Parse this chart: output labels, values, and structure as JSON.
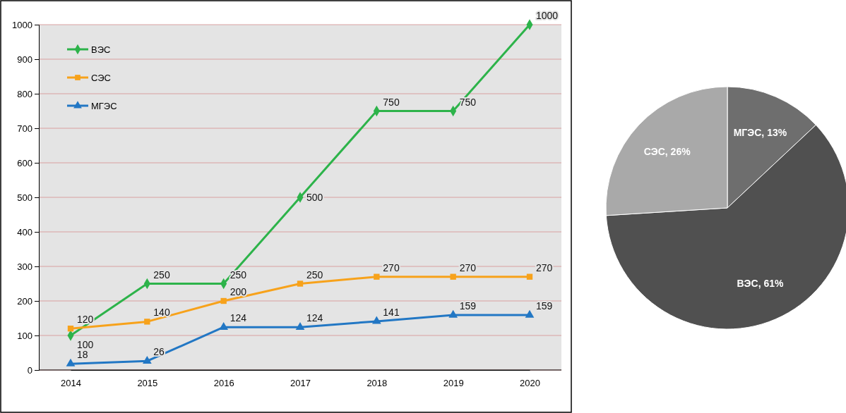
{
  "chart_data": [
    {
      "type": "line",
      "categories": [
        "2014",
        "2015",
        "2016",
        "2017",
        "2018",
        "2019",
        "2020"
      ],
      "ylim": [
        0,
        1000
      ],
      "yticks": [
        0,
        100,
        200,
        300,
        400,
        500,
        600,
        700,
        800,
        900,
        1000
      ],
      "grid": "y",
      "legend": "top left",
      "data_labels": true,
      "series": [
        {
          "name": "ВЭС",
          "color": "#2db34a",
          "marker": "diamond",
          "values": [
            100,
            250,
            250,
            500,
            750,
            750,
            1000
          ]
        },
        {
          "name": "СЭС",
          "color": "#f7a21b",
          "marker": "square",
          "values": [
            120,
            140,
            200,
            250,
            270,
            270,
            270
          ]
        },
        {
          "name": "МГЭС",
          "color": "#2277c4",
          "marker": "triangle",
          "values": [
            18,
            26,
            124,
            124,
            141,
            159,
            159
          ]
        }
      ]
    },
    {
      "type": "pie",
      "categories": [
        "МГЭС",
        "ВЭС",
        "СЭС"
      ],
      "values": [
        13,
        61,
        26
      ],
      "value_labels": [
        "13%",
        "61%",
        "26%"
      ],
      "colors": [
        "#6e6e6e",
        "#505050",
        "#a9a9a9"
      ]
    }
  ]
}
